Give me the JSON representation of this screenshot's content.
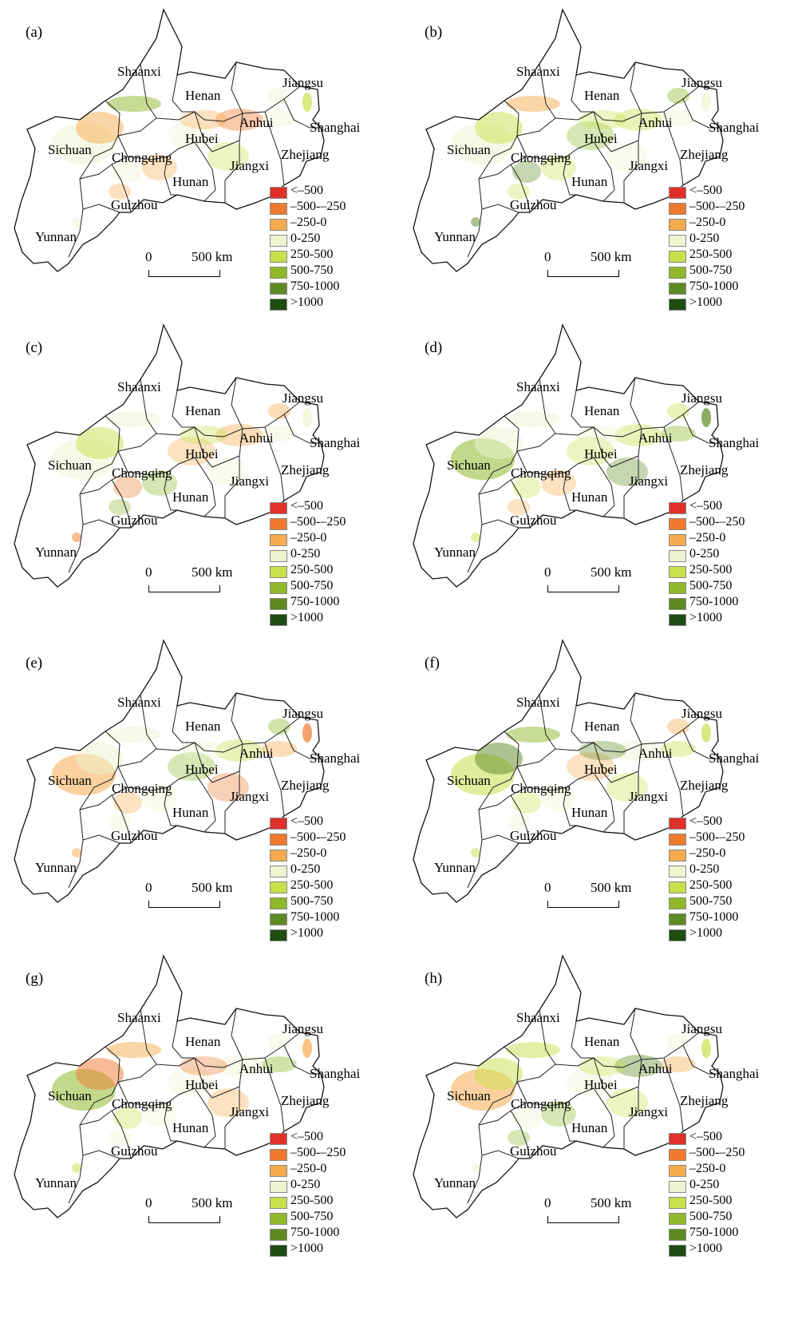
{
  "panels": [
    {
      "letter": "(a)"
    },
    {
      "letter": "(b)"
    },
    {
      "letter": "(c)"
    },
    {
      "letter": "(d)"
    },
    {
      "letter": "(e)"
    },
    {
      "letter": "(f)"
    },
    {
      "letter": "(g)"
    },
    {
      "letter": "(h)"
    }
  ],
  "provinces": [
    "Shaanxi",
    "Henan",
    "Jiangsu",
    "Sichuan",
    "Chongqing",
    "Hubei",
    "Anhui",
    "Shanghai",
    "Zhejiang",
    "Jiangxi",
    "Hunan",
    "Guizhou",
    "Yunnan"
  ],
  "scalebar": {
    "zero": "0",
    "distance": "500 km"
  },
  "legend": [
    {
      "label": "<–500",
      "color": "#e0302a"
    },
    {
      "label": "–500-–250",
      "color": "#ef7a2d"
    },
    {
      "label": "–250-0",
      "color": "#f5ab4e"
    },
    {
      "label": "0-250",
      "color": "#eef4cf"
    },
    {
      "label": "250-500",
      "color": "#c9df4c"
    },
    {
      "label": "500-750",
      "color": "#8fb82a"
    },
    {
      "label": "750-1000",
      "color": "#5e8a22"
    },
    {
      "label": ">1000",
      "color": "#1e4d14"
    }
  ]
}
